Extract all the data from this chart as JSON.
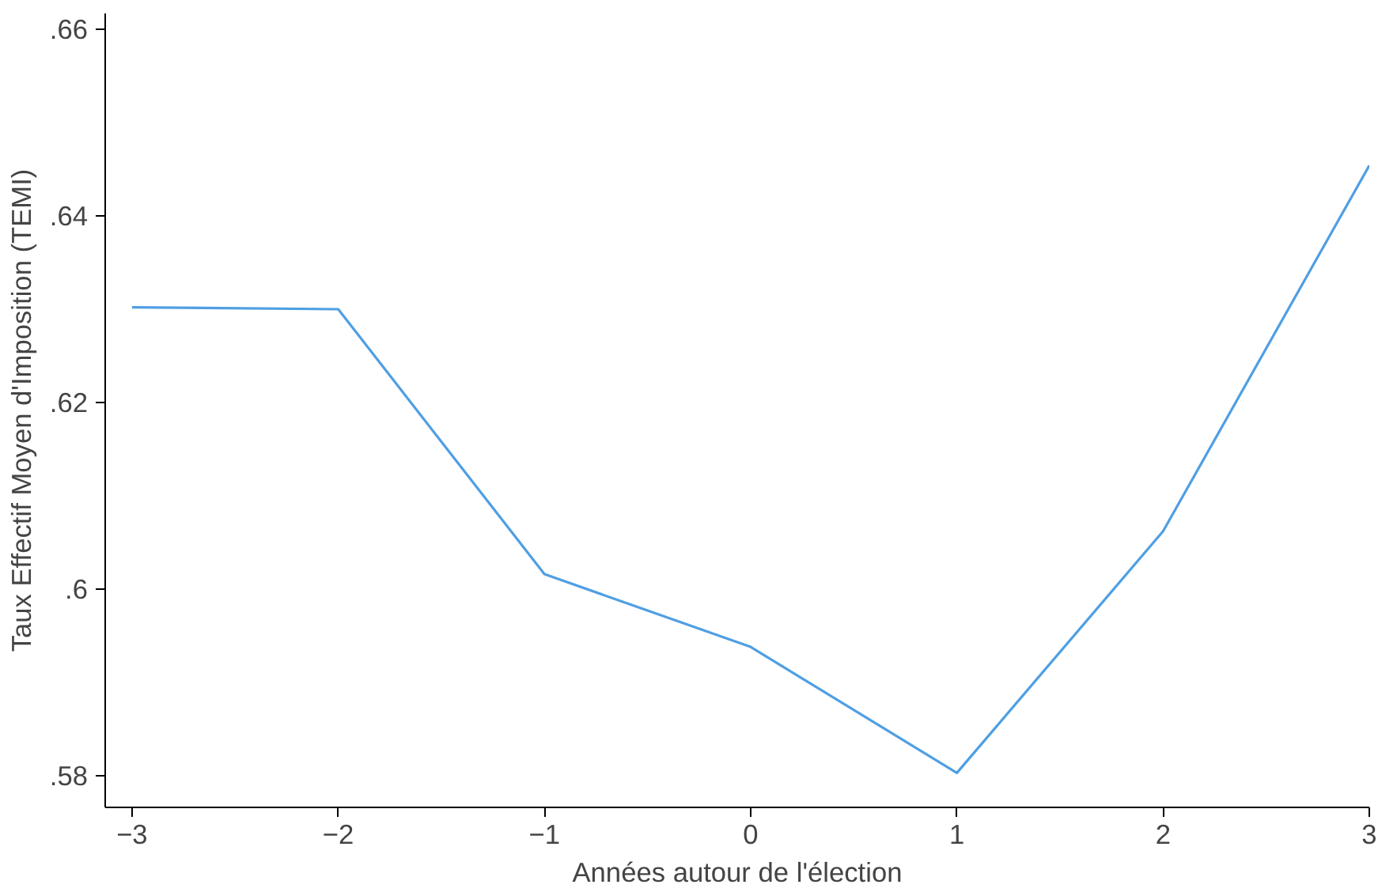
{
  "chart_data": {
    "type": "line",
    "xlabel": "Années autour de l'élection",
    "ylabel": "Taux Effectif Moyen d'Imposition (TEMI)",
    "x": [
      -3,
      -2,
      -1,
      0,
      1,
      2,
      3
    ],
    "series": [
      {
        "color": "#4f9fe3",
        "values": [
          0.6302,
          0.63,
          0.6016,
          0.5938,
          0.5803,
          0.6062,
          0.6454
        ]
      }
    ],
    "xlim": [
      -3.13,
      3.0
    ],
    "ylim": [
      0.5766,
      0.6617
    ],
    "xticks": [
      -3,
      -2,
      -1,
      0,
      1,
      2,
      3
    ],
    "yticks": [
      {
        "value": 0.58,
        "label": ".58"
      },
      {
        "value": 0.6,
        "label": ".6"
      },
      {
        "value": 0.62,
        "label": ".62"
      },
      {
        "value": 0.64,
        "label": ".64"
      },
      {
        "value": 0.66,
        "label": ".66"
      }
    ],
    "grid": false,
    "marker": "none",
    "line_style": "solid"
  }
}
